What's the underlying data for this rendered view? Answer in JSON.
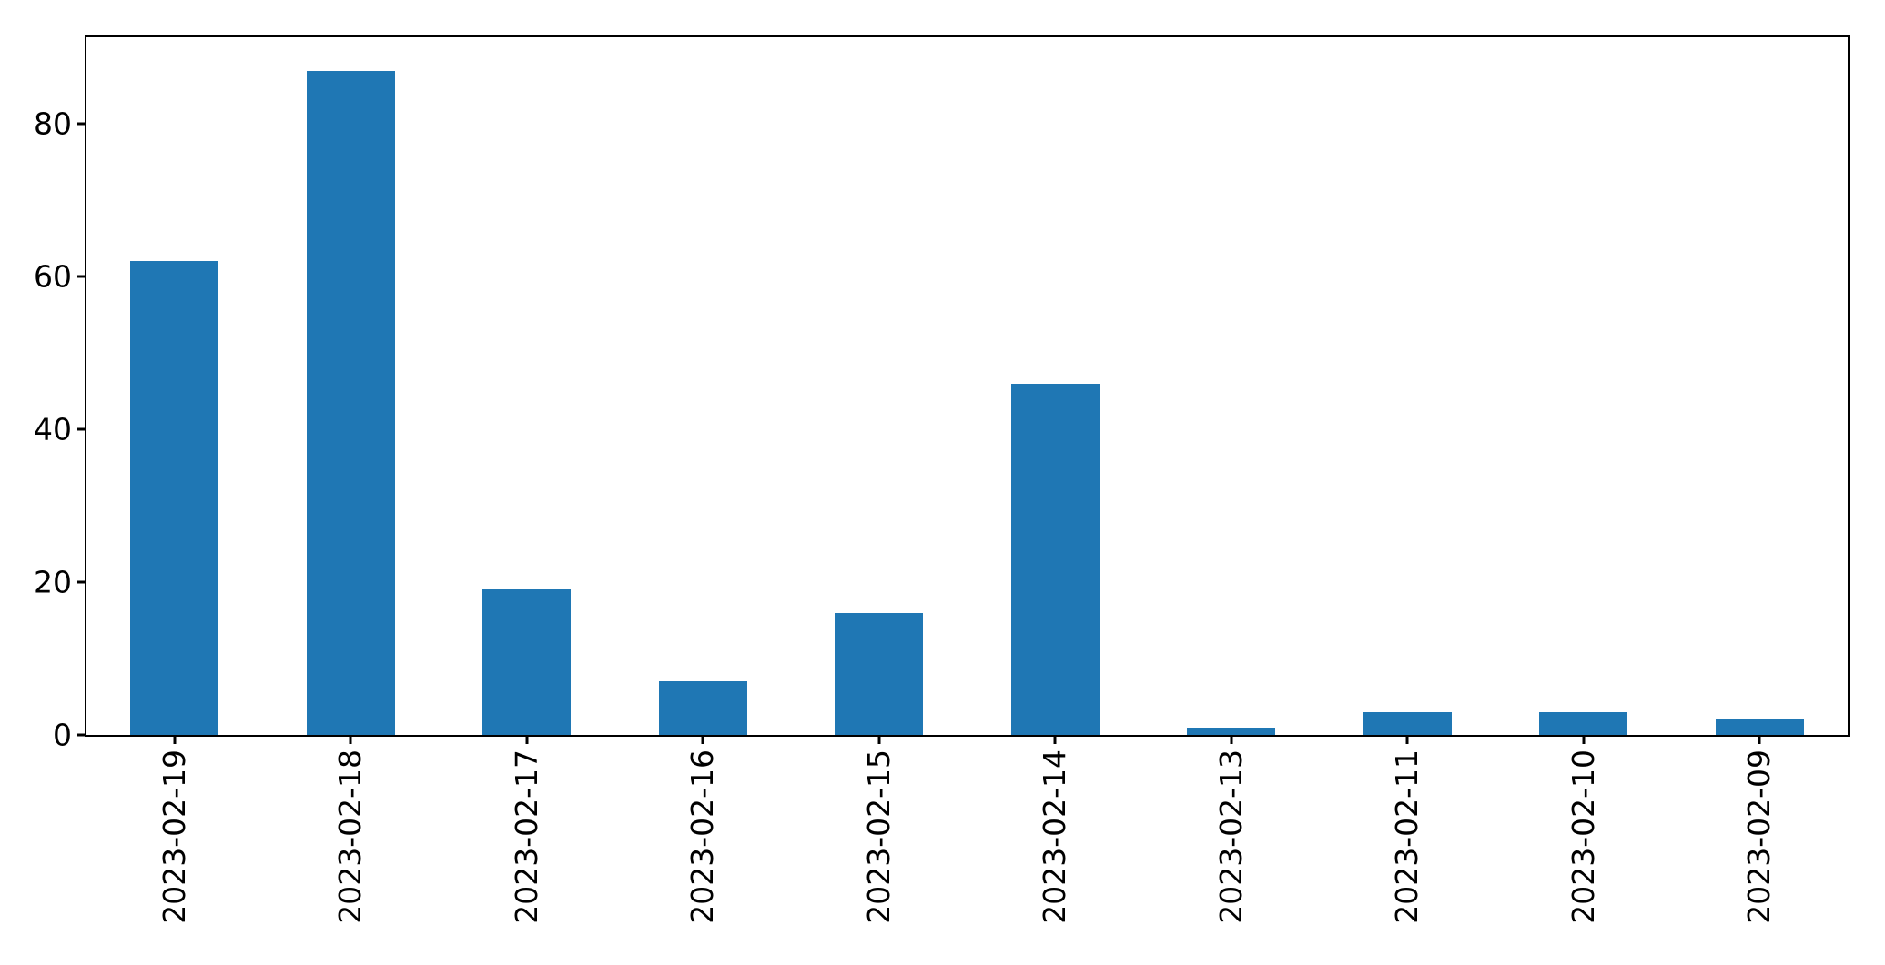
{
  "chart_data": {
    "type": "bar",
    "title": "",
    "xlabel": "",
    "ylabel": "",
    "categories": [
      "2023-02-19",
      "2023-02-18",
      "2023-02-17",
      "2023-02-16",
      "2023-02-15",
      "2023-02-14",
      "2023-02-13",
      "2023-02-11",
      "2023-02-10",
      "2023-02-09"
    ],
    "values": [
      62,
      87,
      19,
      7,
      16,
      46,
      1,
      3,
      3,
      2
    ],
    "yticks": [
      0,
      20,
      40,
      60,
      80
    ],
    "ylim": [
      0,
      91.35
    ],
    "bar_width_fraction": 0.5,
    "x_tick_label_rotation": 90,
    "grid": false,
    "legend": null,
    "colors": {
      "bar": "#1f77b4",
      "axis": "#000000",
      "background": "#ffffff"
    }
  }
}
